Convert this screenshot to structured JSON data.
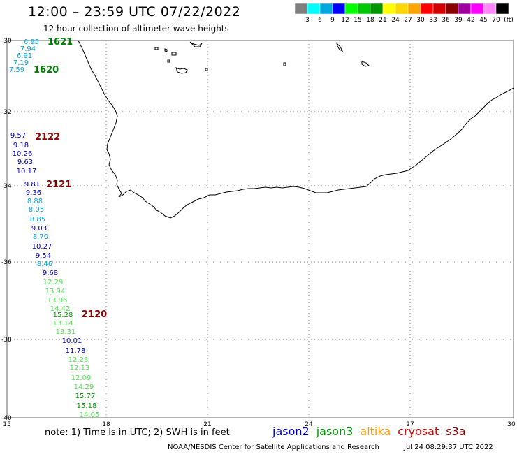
{
  "header": {
    "title": "12:00 – 23:59 UTC 07/22/2022",
    "subtitle": "12 hour collection of altimeter wave heights"
  },
  "colorbar": {
    "colors": [
      "#7f7f7f",
      "#00ffff",
      "#00a8e0",
      "#0000ff",
      "#00ff00",
      "#00c800",
      "#009600",
      "#ffff00",
      "#ffd700",
      "#ffa500",
      "#ff0000",
      "#d20000",
      "#8b0000",
      "#a000a0",
      "#ff00ff",
      "#ff88ff",
      "#000000"
    ],
    "labels": [
      "3",
      "6",
      "9",
      "12",
      "15",
      "18",
      "21",
      "24",
      "27",
      "30",
      "33",
      "36",
      "39",
      "42",
      "45",
      "70",
      "(ft)"
    ]
  },
  "axes": {
    "lat_labels": [
      "-30",
      "-32",
      "-34",
      "-36",
      "-38",
      "-40"
    ],
    "lon_labels": [
      "15",
      "18",
      "21",
      "24",
      "27",
      "30"
    ]
  },
  "passes": [
    {
      "id": "1621",
      "color": "#008000"
    },
    {
      "id": "1620",
      "color": "#008000"
    },
    {
      "id": "2122",
      "color": "#8b0000"
    },
    {
      "id": "2121",
      "color": "#8b0000"
    },
    {
      "id": "2120",
      "color": "#8b0000"
    }
  ],
  "observations": [
    {
      "value": "6.95",
      "color": "#00a8e0"
    },
    {
      "value": "7.94",
      "color": "#00a8e0"
    },
    {
      "value": "6.91",
      "color": "#00a8e0"
    },
    {
      "value": "7.19",
      "color": "#00a8e0"
    },
    {
      "value": "7.59",
      "color": "#00a8e0"
    },
    {
      "value": "9.57",
      "color": "#0000cc"
    },
    {
      "value": "9.18",
      "color": "#0000cc"
    },
    {
      "value": "10.26",
      "color": "#0000cc"
    },
    {
      "value": "9.63",
      "color": "#0000cc"
    },
    {
      "value": "10.17",
      "color": "#0000cc"
    },
    {
      "value": "9.81",
      "color": "#0000cc"
    },
    {
      "value": "9.36",
      "color": "#0000cc"
    },
    {
      "value": "8.88",
      "color": "#00a8e0"
    },
    {
      "value": "8.05",
      "color": "#00a8e0"
    },
    {
      "value": "8.85",
      "color": "#00a8e0"
    },
    {
      "value": "9.03",
      "color": "#0000cc"
    },
    {
      "value": "8.70",
      "color": "#00a8e0"
    },
    {
      "value": "10.27",
      "color": "#0000cc"
    },
    {
      "value": "9.54",
      "color": "#0000cc"
    },
    {
      "value": "8.46",
      "color": "#00a8e0"
    },
    {
      "value": "9.68",
      "color": "#0000cc"
    },
    {
      "value": "12.29",
      "color": "#55e055"
    },
    {
      "value": "13.94",
      "color": "#55e055"
    },
    {
      "value": "13.96",
      "color": "#55e055"
    },
    {
      "value": "14.42",
      "color": "#55e055"
    },
    {
      "value": "15.28",
      "color": "#00a000"
    },
    {
      "value": "13.14",
      "color": "#55e055"
    },
    {
      "value": "13.31",
      "color": "#55e055"
    },
    {
      "value": "10.01",
      "color": "#0000cc"
    },
    {
      "value": "11.78",
      "color": "#0000cc"
    },
    {
      "value": "12.28",
      "color": "#55e055"
    },
    {
      "value": "12.13",
      "color": "#55e055"
    },
    {
      "value": "12.09",
      "color": "#55e055"
    },
    {
      "value": "14.29",
      "color": "#55e055"
    },
    {
      "value": "15.77",
      "color": "#00a000"
    },
    {
      "value": "15.18",
      "color": "#00a000"
    },
    {
      "value": "14.05",
      "color": "#55e055"
    }
  ],
  "footer": {
    "note": "note: 1) Time is in UTC; 2) SWH is in feet",
    "credit": "NOAA/NESDIS Center for Satellite Applications and Research",
    "timestamp": "Jul 24 08:29:37 UTC 2022",
    "satellites": [
      {
        "name": "jason2",
        "color": "#0000cc"
      },
      {
        "name": "jason3",
        "color": "#009600"
      },
      {
        "name": "altika",
        "color": "#ff9900"
      },
      {
        "name": "cryosat",
        "color": "#dd0000"
      },
      {
        "name": "s3a",
        "color": "#8b0000"
      }
    ]
  }
}
